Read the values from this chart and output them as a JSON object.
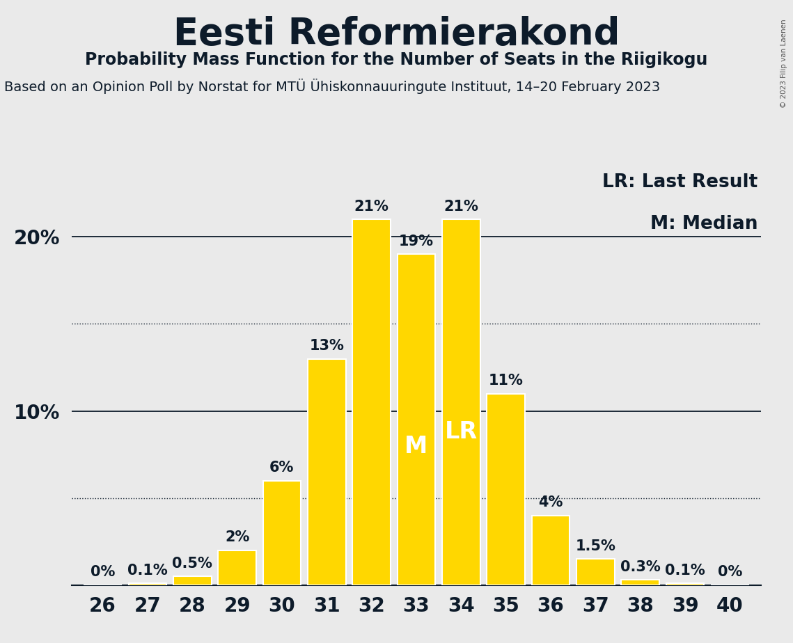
{
  "title": "Eesti Reformierakond",
  "subtitle": "Probability Mass Function for the Number of Seats in the Riigikogu",
  "subtitle2": "Based on an Opinion Poll by Norstat for MTÜ Ühiskonnauuringute Instituut, 14–20 February 2023",
  "copyright": "© 2023 Filip van Laenen",
  "categories": [
    26,
    27,
    28,
    29,
    30,
    31,
    32,
    33,
    34,
    35,
    36,
    37,
    38,
    39,
    40
  ],
  "values": [
    0.0,
    0.1,
    0.5,
    2.0,
    6.0,
    13.0,
    21.0,
    19.0,
    21.0,
    11.0,
    4.0,
    1.5,
    0.3,
    0.1,
    0.0
  ],
  "bar_labels": [
    "0%",
    "0.1%",
    "0.5%",
    "2%",
    "6%",
    "13%",
    "21%",
    "19%",
    "21%",
    "11%",
    "4%",
    "1.5%",
    "0.3%",
    "0.1%",
    "0%"
  ],
  "bar_color": "#FFD700",
  "bar_edgecolor": "#FFFFFF",
  "background_color": "#EAEAEA",
  "median_seat": 33,
  "last_result_seat": 34,
  "ylim": [
    0,
    24
  ],
  "dotted_lines": [
    5.0,
    15.0
  ],
  "solid_lines": [
    10.0,
    20.0
  ],
  "title_fontsize": 38,
  "subtitle_fontsize": 17,
  "subtitle2_fontsize": 14,
  "axis_tick_fontsize": 20,
  "bar_label_fontsize": 15,
  "legend_fontsize": 19,
  "marker_fontsize": 24,
  "ytick_labels_pos": [
    10,
    20
  ],
  "ytick_labels": [
    "10%",
    "20%"
  ],
  "text_color": "#0D1B2A"
}
